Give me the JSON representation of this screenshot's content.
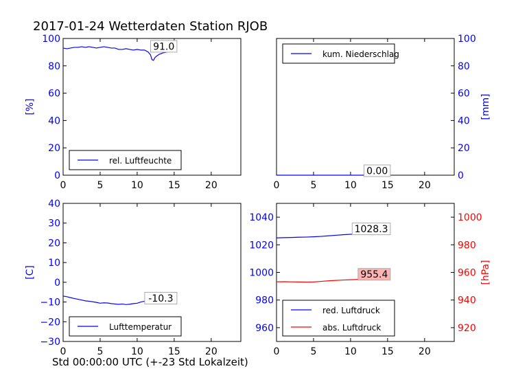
{
  "title": "2017-01-24 Wetterdaten Station RJOB",
  "footer_label": "Std 00:00:00 UTC (+-23 Std Lokalzeit)",
  "colors": {
    "blue": "#0000ff",
    "red": "#ff0000",
    "box_fill": "#ffffff",
    "red_box_fill": "#ffb3b3"
  },
  "chart_data": [
    {
      "type": "line",
      "panel": "top-left",
      "ylabel": "[%]",
      "ylim": [
        0,
        100
      ],
      "yticks": [
        "0",
        "20",
        "40",
        "60",
        "80",
        "100"
      ],
      "xlim": [
        0,
        24
      ],
      "xticks": [
        "0",
        "5",
        "10",
        "15",
        "20"
      ],
      "yaxis_side": "left",
      "legend_position": "lower-left",
      "last_value_label": "91.0",
      "series": [
        {
          "name": "rel. Luftfeuchte",
          "color": "#0000ff",
          "x": [
            0,
            0.5,
            1,
            1.5,
            2,
            2.5,
            3,
            3.5,
            4,
            4.5,
            5,
            5.5,
            6,
            6.5,
            7,
            7.5,
            8,
            8.5,
            9,
            9.5,
            10,
            10.5,
            11,
            11.5,
            11.8,
            12,
            12.2,
            12.4,
            12.6,
            13,
            13.5,
            14,
            14.5,
            15
          ],
          "y": [
            93,
            92.5,
            93,
            93.5,
            93.5,
            94,
            93.5,
            94,
            93.5,
            93,
            93.5,
            94,
            93.5,
            93,
            93,
            92,
            92,
            92.5,
            92,
            91.5,
            92,
            91.5,
            91.5,
            90,
            88,
            84.5,
            84,
            86,
            87,
            88.5,
            89.5,
            90,
            90.5,
            91
          ]
        }
      ]
    },
    {
      "type": "line",
      "panel": "top-right",
      "ylabel": "[mm]",
      "ylim": [
        0,
        100
      ],
      "yticks": [
        "0",
        "20",
        "40",
        "60",
        "80",
        "100"
      ],
      "xlim": [
        0,
        24
      ],
      "xticks": [
        "0",
        "5",
        "10",
        "15",
        "20"
      ],
      "yaxis_side": "right",
      "legend_position": "upper-left",
      "last_value_label": "0.00",
      "series": [
        {
          "name": "kum. Niederschlag",
          "color": "#0000ff",
          "x": [
            0,
            15
          ],
          "y": [
            0,
            0
          ]
        }
      ]
    },
    {
      "type": "line",
      "panel": "bottom-left",
      "ylabel": "[C]",
      "ylim": [
        -30,
        40
      ],
      "yticks": [
        "−30",
        "−20",
        "−10",
        "0",
        "10",
        "20",
        "30",
        "40"
      ],
      "xlim": [
        0,
        24
      ],
      "xticks": [
        "0",
        "5",
        "10",
        "15",
        "20"
      ],
      "yaxis_side": "left",
      "legend_position": "lower-left",
      "last_value_label": "-10.3",
      "series": [
        {
          "name": "Lufttemperatur",
          "color": "#0000ff",
          "x": [
            0,
            0.5,
            1,
            1.5,
            2,
            2.5,
            3,
            3.5,
            4,
            4.5,
            5,
            5.5,
            6,
            6.5,
            7,
            7.5,
            8,
            8.5,
            9,
            9.5,
            10,
            10.5,
            11,
            11.5,
            12,
            12.5,
            13,
            13.5,
            14,
            14.5,
            15
          ],
          "y": [
            -7,
            -7.3,
            -7.8,
            -8.2,
            -8.6,
            -9,
            -9.4,
            -9.6,
            -9.9,
            -10.2,
            -10.6,
            -10.4,
            -10.5,
            -10.8,
            -11,
            -11.2,
            -11,
            -11.3,
            -11.1,
            -10.8,
            -10.6,
            -10,
            -9.6,
            -8.8,
            -8,
            -8.8,
            -9.5,
            -9.9,
            -10.1,
            -10.2,
            -10.3
          ]
        }
      ]
    },
    {
      "type": "line",
      "panel": "bottom-right",
      "ylabel_left": "",
      "ylabel_right": "[hPa]",
      "ylim_left": [
        950,
        1050
      ],
      "yticks_left": [
        "960",
        "980",
        "1000",
        "1020",
        "1040"
      ],
      "ylim_right": [
        910,
        1010
      ],
      "yticks_right": [
        "920",
        "940",
        "960",
        "980",
        "1000"
      ],
      "xlim": [
        0,
        24
      ],
      "xticks": [
        "0",
        "5",
        "10",
        "15",
        "20"
      ],
      "legend_position": "lower-left",
      "series": [
        {
          "name": "red. Luftdruck",
          "color": "#0000ff",
          "axis": "left",
          "last_value_label": "1028.3",
          "x": [
            0,
            1,
            2,
            3,
            4,
            5,
            6,
            7,
            8,
            9,
            10,
            11,
            12,
            13,
            14,
            15
          ],
          "y": [
            1025,
            1025.2,
            1025.3,
            1025.5,
            1025.6,
            1025.8,
            1026.1,
            1026.5,
            1026.9,
            1027.3,
            1027.6,
            1027.9,
            1028.1,
            1028,
            1028.2,
            1028.3
          ]
        },
        {
          "name": "abs. Luftdruck",
          "color": "#ff0000",
          "axis": "right",
          "last_value_label": "955.4",
          "x": [
            0,
            1,
            2,
            3,
            4,
            5,
            6,
            7,
            8,
            9,
            10,
            11,
            12,
            13,
            14,
            15
          ],
          "y": [
            953.2,
            953.3,
            953.2,
            953.1,
            953,
            953.1,
            953.5,
            953.9,
            954.2,
            954.5,
            954.7,
            954.9,
            955,
            955.1,
            955.3,
            955.4
          ]
        }
      ]
    }
  ]
}
